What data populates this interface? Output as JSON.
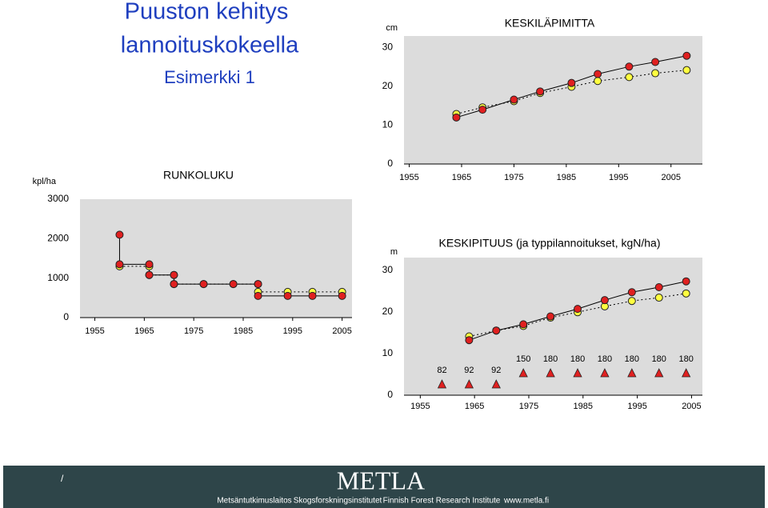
{
  "slide": {
    "title_lines": [
      "Puuston kehitys",
      "lannoituskokeella"
    ],
    "subtitle": "Esimerkki 1"
  },
  "footer": {
    "mark": "/",
    "logo": "METLA",
    "items": [
      "Metsäntutkimuslaitos",
      "Skogsforskningsinstitutet",
      "Finnish Forest Research Institute",
      "www.metla.fi"
    ]
  },
  "chart_data": [
    {
      "type": "line",
      "title": "KESKILÄPIMITTA",
      "y_label": "cm",
      "xlim": [
        1954,
        2011
      ],
      "xticks": [
        1955,
        1965,
        1975,
        1985,
        1995,
        2005
      ],
      "ylim": [
        0,
        33
      ],
      "yticks": [
        0,
        10,
        20,
        30
      ],
      "series": [
        {
          "color": "#e02020",
          "line": "solid",
          "x": [
            1964,
            1969,
            1975,
            1980,
            1986,
            1991,
            1997,
            2002,
            2008
          ],
          "values": [
            12,
            14,
            16.6,
            18.7,
            20.9,
            23.2,
            25.1,
            26.3,
            27.9
          ]
        },
        {
          "color": "#ffff40",
          "line": "dotted",
          "x": [
            1964,
            1969,
            1975,
            1980,
            1986,
            1991,
            1997,
            2002,
            2008
          ],
          "values": [
            12.9,
            14.6,
            16.2,
            18.3,
            19.9,
            21.4,
            22.4,
            23.4,
            24.2
          ]
        }
      ]
    },
    {
      "type": "line",
      "title": "RUNKOLUKU",
      "y_label": "kpl/ha",
      "xlim": [
        1952,
        2007
      ],
      "xticks": [
        1955,
        1965,
        1975,
        1985,
        1995,
        2005
      ],
      "ylim": [
        0,
        3000
      ],
      "yticks": [
        0,
        1000,
        2000,
        3000
      ],
      "series": [
        {
          "color": "#e02020",
          "line": "solid",
          "x": [
            1960,
            1960,
            1966,
            1966,
            1971,
            1971,
            1977,
            1983,
            1988,
            1988,
            1994,
            1999,
            2005
          ],
          "values": [
            2100,
            1350,
            1350,
            1080,
            1080,
            850,
            850,
            850,
            850,
            550,
            550,
            550,
            550
          ]
        },
        {
          "color": "#ffff40",
          "line": "dotted",
          "x": [
            1960,
            1966,
            1966,
            1971,
            1971,
            1977,
            1983,
            1988,
            1988,
            1994,
            1999,
            2005
          ],
          "values": [
            1300,
            1300,
            1080,
            1080,
            850,
            850,
            850,
            850,
            650,
            650,
            650,
            650
          ]
        }
      ]
    },
    {
      "type": "line",
      "title": "KESKIPITUUS  (ja typpilannoitukset, kgN/ha)",
      "y_label": "m",
      "xlim": [
        1952,
        2007
      ],
      "xticks": [
        1955,
        1965,
        1975,
        1985,
        1995,
        2005
      ],
      "ylim": [
        0,
        33
      ],
      "yticks": [
        0,
        10,
        20,
        30
      ],
      "series": [
        {
          "color": "#e02020",
          "line": "solid",
          "x": [
            1964,
            1969,
            1974,
            1979,
            1984,
            1989,
            1994,
            1999,
            2004
          ],
          "values": [
            13.2,
            15.5,
            17,
            18.9,
            20.7,
            22.8,
            24.7,
            25.9,
            27.3
          ]
        },
        {
          "color": "#ffff40",
          "line": "dotted",
          "x": [
            1964,
            1969,
            1974,
            1979,
            1984,
            1989,
            1994,
            1999,
            2004
          ],
          "values": [
            14.1,
            15.5,
            16.6,
            18.6,
            19.9,
            21.3,
            22.6,
            23.4,
            24.4
          ]
        }
      ],
      "fertilization": {
        "color": "#e02020",
        "x": [
          1959,
          1964,
          1969,
          1974,
          1979,
          1984,
          1989,
          1994,
          1999,
          2004
        ],
        "values": [
          82,
          92,
          92,
          150,
          180,
          180,
          180,
          180,
          180,
          180
        ]
      }
    }
  ]
}
